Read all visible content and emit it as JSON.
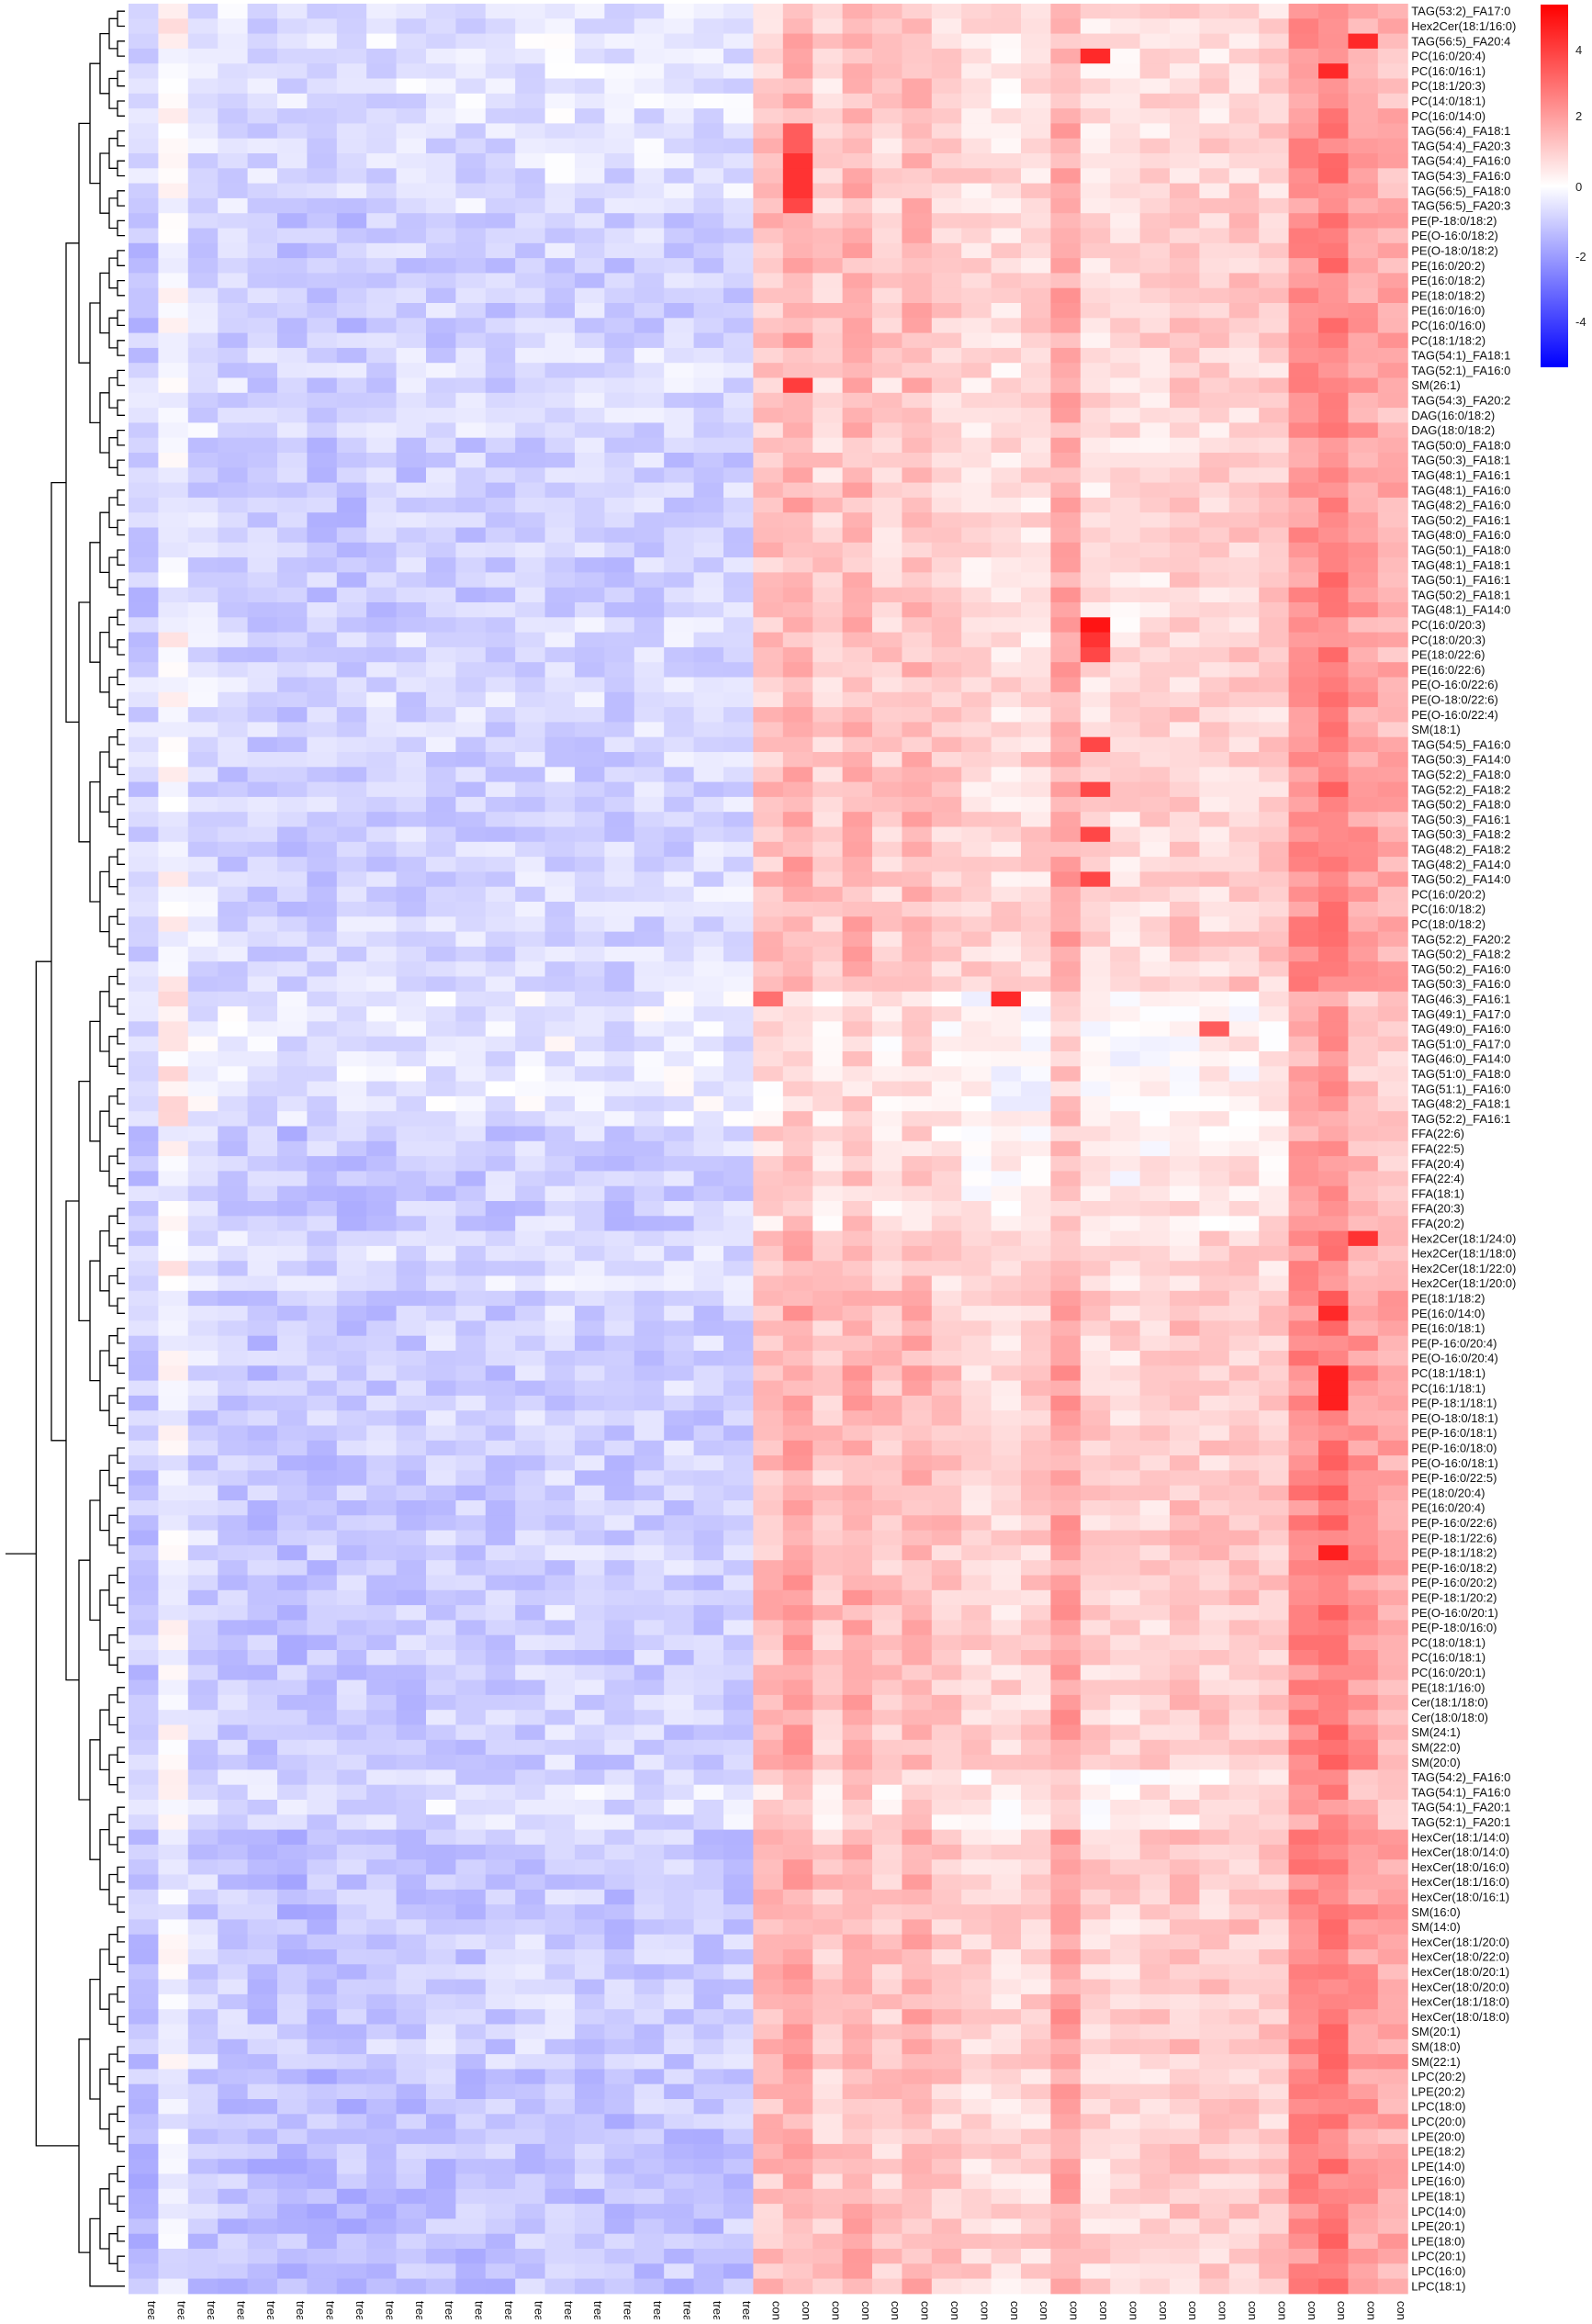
{
  "chart_data": {
    "type": "heatmap",
    "title": "",
    "xlabel": "",
    "ylabel": "",
    "color_scale": {
      "min": -5,
      "max": 5,
      "low_color": "#0000ff",
      "mid_color": "#ffffff",
      "high_color": "#ff0000",
      "ticks": [
        "4",
        "2",
        "0",
        "-2",
        "-4"
      ]
    },
    "columns": [
      "treatment",
      "treatment",
      "treatment",
      "treatment",
      "treatment",
      "treatment",
      "treatment",
      "treatment",
      "treatment",
      "treatment",
      "treatment",
      "treatment",
      "treatment",
      "treatment",
      "treatment",
      "treatment",
      "treatment",
      "treatment",
      "treatment",
      "treatment",
      "treatment",
      "control",
      "control",
      "control",
      "control",
      "control",
      "control",
      "control",
      "control",
      "control",
      "control",
      "control",
      "control",
      "control",
      "control",
      "control",
      "control",
      "control",
      "control",
      "control",
      "control",
      "control",
      "control"
    ],
    "column_groups": [
      {
        "name": "treatment",
        "count": 21
      },
      {
        "name": "control",
        "count": 22
      }
    ],
    "rows": [
      "TAG(53:2)_FA17:0",
      "Hex2Cer(18:1/16:0)",
      "TAG(56:5)_FA20:4",
      "PC(16:0/20:4)",
      "PC(16:0/16:1)",
      "PC(18:1/20:3)",
      "PC(14:0/18:1)",
      "PC(16:0/14:0)",
      "TAG(56:4)_FA18:1",
      "TAG(54:4)_FA20:3",
      "TAG(54:4)_FA16:0",
      "TAG(54:3)_FA16:0",
      "TAG(56:5)_FA18:0",
      "TAG(56:5)_FA20:3",
      "PE(P-18:0/18:2)",
      "PE(O-16:0/18:2)",
      "PE(O-18:0/18:2)",
      "PE(16:0/20:2)",
      "PE(16:0/18:2)",
      "PE(18:0/18:2)",
      "PE(16:0/16:0)",
      "PC(16:0/16:0)",
      "PC(18:1/18:2)",
      "TAG(54:1)_FA18:1",
      "TAG(52:1)_FA16:0",
      "SM(26:1)",
      "TAG(54:3)_FA20:2",
      "DAG(16:0/18:2)",
      "DAG(18:0/18:2)",
      "TAG(50:0)_FA18:0",
      "TAG(50:3)_FA18:1",
      "TAG(48:1)_FA16:1",
      "TAG(48:1)_FA16:0",
      "TAG(48:2)_FA16:0",
      "TAG(50:2)_FA16:1",
      "TAG(48:0)_FA16:0",
      "TAG(50:1)_FA18:0",
      "TAG(48:1)_FA18:1",
      "TAG(50:1)_FA16:1",
      "TAG(50:2)_FA18:1",
      "TAG(48:1)_FA14:0",
      "PC(16:0/20:3)",
      "PC(18:0/20:3)",
      "PE(18:0/22:6)",
      "PE(16:0/22:6)",
      "PE(O-16:0/22:6)",
      "PE(O-18:0/22:6)",
      "PE(O-16:0/22:4)",
      "SM(18:1)",
      "TAG(54:5)_FA16:0",
      "TAG(50:3)_FA14:0",
      "TAG(52:2)_FA18:0",
      "TAG(52:2)_FA18:2",
      "TAG(50:2)_FA18:0",
      "TAG(50:3)_FA16:1",
      "TAG(50:3)_FA18:2",
      "TAG(48:2)_FA18:2",
      "TAG(48:2)_FA14:0",
      "TAG(50:2)_FA14:0",
      "PC(16:0/20:2)",
      "PC(16:0/18:2)",
      "PC(18:0/18:2)",
      "TAG(52:2)_FA20:2",
      "TAG(50:2)_FA18:2",
      "TAG(50:2)_FA16:0",
      "TAG(50:3)_FA16:0",
      "TAG(46:3)_FA16:1",
      "TAG(49:1)_FA17:0",
      "TAG(49:0)_FA16:0",
      "TAG(51:0)_FA17:0",
      "TAG(46:0)_FA14:0",
      "TAG(51:0)_FA18:0",
      "TAG(51:1)_FA16:0",
      "TAG(48:2)_FA18:1",
      "TAG(52:2)_FA16:1",
      "FFA(22:6)",
      "FFA(22:5)",
      "FFA(20:4)",
      "FFA(22:4)",
      "FFA(18:1)",
      "FFA(20:3)",
      "FFA(20:2)",
      "Hex2Cer(18:1/24:0)",
      "Hex2Cer(18:1/18:0)",
      "Hex2Cer(18:1/22:0)",
      "Hex2Cer(18:1/20:0)",
      "PE(18:1/18:2)",
      "PE(16:0/14:0)",
      "PE(16:0/18:1)",
      "PE(P-16:0/20:4)",
      "PE(O-16:0/20:4)",
      "PC(18:1/18:1)",
      "PC(16:1/18:1)",
      "PE(P-18:1/18:1)",
      "PE(O-18:0/18:1)",
      "PE(P-16:0/18:1)",
      "PE(P-16:0/18:0)",
      "PE(O-16:0/18:1)",
      "PE(P-16:0/22:5)",
      "PE(18:0/20:4)",
      "PE(16:0/20:4)",
      "PE(P-16:0/22:6)",
      "PE(P-18:1/22:6)",
      "PE(P-18:1/18:2)",
      "PE(P-16:0/18:2)",
      "PE(P-16:0/20:2)",
      "PE(P-18:1/20:2)",
      "PE(O-16:0/20:1)",
      "PE(P-18:0/16:0)",
      "PC(18:0/18:1)",
      "PC(16:0/18:1)",
      "PC(16:0/20:1)",
      "PE(18:1/16:0)",
      "Cer(18:1/18:0)",
      "Cer(18:0/18:0)",
      "SM(24:1)",
      "SM(22:0)",
      "SM(20:0)",
      "TAG(54:2)_FA16:0",
      "TAG(54:1)_FA16:0",
      "TAG(54:1)_FA20:1",
      "TAG(52:1)_FA20:1",
      "HexCer(18:1/14:0)",
      "HexCer(18:0/14:0)",
      "HexCer(18:0/16:0)",
      "HexCer(18:1/16:0)",
      "HexCer(18:0/16:1)",
      "SM(16:0)",
      "SM(14:0)",
      "HexCer(18:1/20:0)",
      "HexCer(18:0/22:0)",
      "HexCer(18:0/20:1)",
      "HexCer(18:0/20:0)",
      "HexCer(18:1/18:0)",
      "HexCer(18:0/18:0)",
      "SM(20:1)",
      "SM(18:0)",
      "SM(22:1)",
      "LPC(20:2)",
      "LPE(20:2)",
      "LPC(18:0)",
      "LPC(20:0)",
      "LPE(20:0)",
      "LPE(18:2)",
      "LPE(14:0)",
      "LPE(16:0)",
      "LPE(18:1)",
      "LPC(14:0)",
      "LPE(20:1)",
      "LPE(18:0)",
      "LPC(20:1)",
      "LPC(16:0)",
      "LPC(18:1)"
    ],
    "row_blocks": [
      {
        "first": 0,
        "last": 7,
        "treatment_mean": -0.5,
        "control_mean": 0.8
      },
      {
        "first": 8,
        "last": 13,
        "treatment_mean": -0.6,
        "control_mean": 0.9
      },
      {
        "first": 14,
        "last": 22,
        "treatment_mean": -0.9,
        "control_mean": 1.0
      },
      {
        "first": 23,
        "last": 28,
        "treatment_mean": -0.7,
        "control_mean": 0.9
      },
      {
        "first": 29,
        "last": 40,
        "treatment_mean": -0.9,
        "control_mean": 0.9
      },
      {
        "first": 41,
        "last": 48,
        "treatment_mean": -0.7,
        "control_mean": 0.9
      },
      {
        "first": 49,
        "last": 58,
        "treatment_mean": -0.8,
        "control_mean": 1.0
      },
      {
        "first": 59,
        "last": 65,
        "treatment_mean": -0.7,
        "control_mean": 1.0
      },
      {
        "first": 66,
        "last": 74,
        "treatment_mean": -0.4,
        "control_mean": 0.3
      },
      {
        "first": 75,
        "last": 81,
        "treatment_mean": -0.9,
        "control_mean": 0.5
      },
      {
        "first": 82,
        "last": 85,
        "treatment_mean": -0.6,
        "control_mean": 0.8
      },
      {
        "first": 86,
        "last": 98,
        "treatment_mean": -0.9,
        "control_mean": 1.1
      },
      {
        "first": 99,
        "last": 108,
        "treatment_mean": -0.9,
        "control_mean": 1.1
      },
      {
        "first": 109,
        "last": 117,
        "treatment_mean": -0.9,
        "control_mean": 1.1
      },
      {
        "first": 118,
        "last": 121,
        "treatment_mean": -0.6,
        "control_mean": 0.6
      },
      {
        "first": 122,
        "last": 128,
        "treatment_mean": -1.0,
        "control_mean": 1.1
      },
      {
        "first": 129,
        "last": 137,
        "treatment_mean": -0.9,
        "control_mean": 1.1
      },
      {
        "first": 138,
        "last": 152,
        "treatment_mean": -1.1,
        "control_mean": 1.0
      }
    ],
    "column_bias": [
      -0.2,
      0.9,
      0.1,
      -0.1,
      -0.2,
      -0.3,
      -0.2,
      -0.2,
      -0.1,
      -0.1,
      0.0,
      -0.1,
      -0.1,
      0.0,
      0.1,
      0.0,
      -0.1,
      0.0,
      0.0,
      0.0,
      0.0,
      0.2,
      0.6,
      0.0,
      0.5,
      0.0,
      0.4,
      0.0,
      -0.2,
      -0.3,
      -0.2,
      0.7,
      -0.2,
      -0.3,
      -0.2,
      0.0,
      -0.1,
      0.0,
      0.0,
      1.2,
      1.6,
      0.9,
      0.6
    ],
    "hotspots": [
      {
        "row": 10,
        "col": 22,
        "value": 4.0
      },
      {
        "row": 11,
        "col": 22,
        "value": 4.0
      },
      {
        "row": 12,
        "col": 22,
        "value": 4.0
      },
      {
        "row": 13,
        "col": 22,
        "value": 3.6
      },
      {
        "row": 8,
        "col": 22,
        "value": 3.2
      },
      {
        "row": 9,
        "col": 22,
        "value": 3.2
      },
      {
        "row": 41,
        "col": 32,
        "value": 4.6
      },
      {
        "row": 42,
        "col": 32,
        "value": 4.0
      },
      {
        "row": 43,
        "col": 32,
        "value": 3.6
      },
      {
        "row": 49,
        "col": 32,
        "value": 3.6
      },
      {
        "row": 52,
        "col": 32,
        "value": 3.6
      },
      {
        "row": 55,
        "col": 32,
        "value": 3.6
      },
      {
        "row": 58,
        "col": 32,
        "value": 3.6
      },
      {
        "row": 3,
        "col": 32,
        "value": 4.2
      },
      {
        "row": 4,
        "col": 40,
        "value": 4.2
      },
      {
        "row": 2,
        "col": 41,
        "value": 4.2
      },
      {
        "row": 25,
        "col": 22,
        "value": 3.8
      },
      {
        "row": 66,
        "col": 29,
        "value": 4.2
      },
      {
        "row": 66,
        "col": 21,
        "value": 2.8
      },
      {
        "row": 68,
        "col": 36,
        "value": 3.2
      },
      {
        "row": 87,
        "col": 40,
        "value": 4.2
      },
      {
        "row": 91,
        "col": 40,
        "value": 4.4
      },
      {
        "row": 92,
        "col": 40,
        "value": 4.4
      },
      {
        "row": 93,
        "col": 40,
        "value": 4.4
      },
      {
        "row": 103,
        "col": 40,
        "value": 4.4
      },
      {
        "row": 82,
        "col": 41,
        "value": 4.0
      }
    ]
  }
}
